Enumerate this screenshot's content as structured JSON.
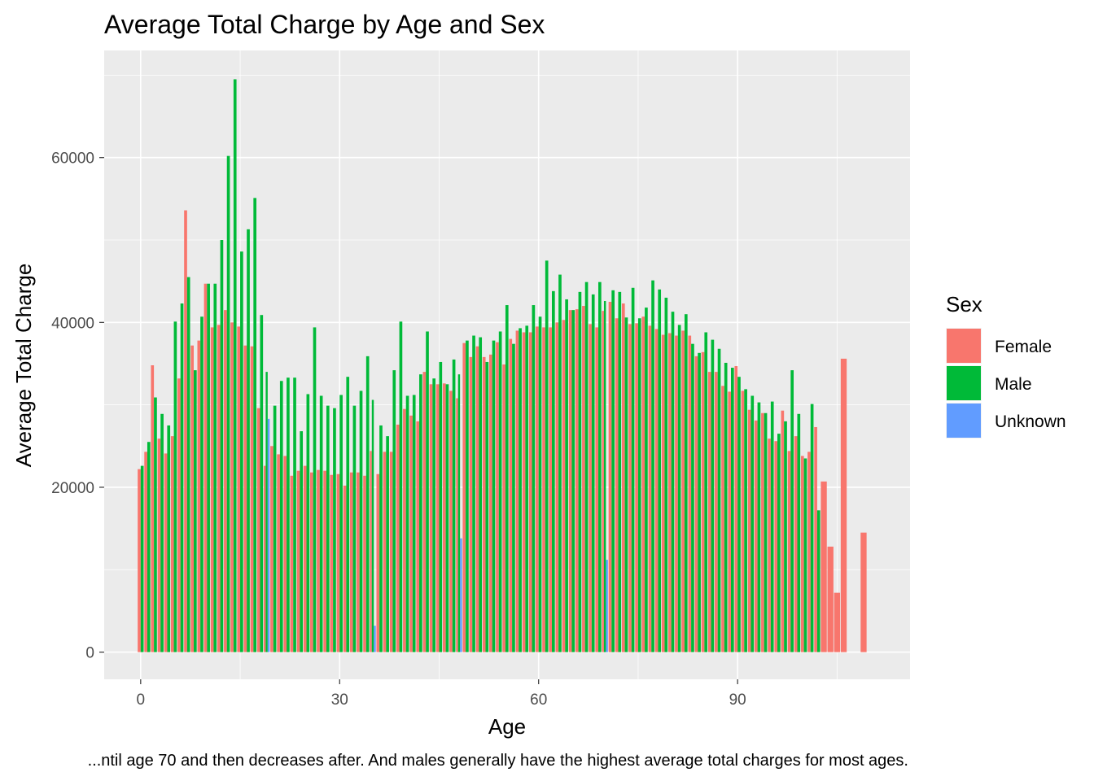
{
  "chart_data": {
    "type": "bar",
    "title": "Average Total Charge by Age and Sex",
    "xlabel": "Age",
    "ylabel": "Average Total Charge",
    "caption": "...ntil age 70 and then decreases after. And males generally have the highest average total charges for most ages.",
    "xlim": [
      -5.5,
      116
    ],
    "ylim": [
      -3300,
      73000
    ],
    "x_ticks": [
      0,
      30,
      60,
      90
    ],
    "x_tick_labels": [
      "0",
      "30",
      "60",
      "90"
    ],
    "y_ticks": [
      0,
      20000,
      40000,
      60000
    ],
    "y_tick_labels": [
      "0",
      "20000",
      "40000",
      "60000"
    ],
    "grid": true,
    "legend": {
      "title": "Sex",
      "position": "right"
    },
    "series": [
      {
        "name": "Female",
        "color": "#F8766D",
        "points": [
          [
            0,
            22200
          ],
          [
            1,
            24300
          ],
          [
            2,
            34800
          ],
          [
            3,
            25900
          ],
          [
            4,
            24100
          ],
          [
            5,
            26200
          ],
          [
            6,
            33200
          ],
          [
            7,
            53600
          ],
          [
            8,
            37200
          ],
          [
            9,
            37800
          ],
          [
            10,
            44700
          ],
          [
            11,
            39400
          ],
          [
            12,
            39700
          ],
          [
            13,
            41500
          ],
          [
            14,
            40000
          ],
          [
            15,
            39500
          ],
          [
            16,
            37200
          ],
          [
            17,
            37100
          ],
          [
            18,
            29600
          ],
          [
            19,
            22600
          ],
          [
            20,
            25000
          ],
          [
            21,
            24000
          ],
          [
            22,
            23800
          ],
          [
            23,
            21400
          ],
          [
            24,
            22000
          ],
          [
            25,
            22600
          ],
          [
            26,
            21800
          ],
          [
            27,
            22100
          ],
          [
            28,
            22000
          ],
          [
            29,
            21500
          ],
          [
            30,
            21600
          ],
          [
            31,
            20200
          ],
          [
            32,
            21800
          ],
          [
            33,
            21800
          ],
          [
            34,
            21400
          ],
          [
            35,
            24400
          ],
          [
            36,
            21600
          ],
          [
            37,
            24300
          ],
          [
            38,
            24300
          ],
          [
            39,
            27600
          ],
          [
            40,
            29500
          ],
          [
            41,
            28700
          ],
          [
            42,
            28000
          ],
          [
            43,
            34000
          ],
          [
            44,
            32500
          ],
          [
            45,
            32500
          ],
          [
            46,
            32600
          ],
          [
            47,
            31700
          ],
          [
            48,
            30800
          ],
          [
            49,
            37500
          ],
          [
            50,
            35800
          ],
          [
            51,
            37100
          ],
          [
            52,
            35800
          ],
          [
            53,
            36100
          ],
          [
            54,
            37600
          ],
          [
            55,
            34900
          ],
          [
            56,
            38000
          ],
          [
            57,
            39000
          ],
          [
            58,
            38800
          ],
          [
            59,
            38800
          ],
          [
            60,
            39500
          ],
          [
            61,
            39400
          ],
          [
            62,
            39400
          ],
          [
            63,
            40000
          ],
          [
            64,
            40300
          ],
          [
            65,
            41500
          ],
          [
            66,
            41600
          ],
          [
            67,
            42000
          ],
          [
            68,
            39800
          ],
          [
            69,
            39400
          ],
          [
            70,
            41400
          ],
          [
            71,
            42500
          ],
          [
            72,
            40500
          ],
          [
            73,
            42300
          ],
          [
            74,
            39800
          ],
          [
            75,
            39900
          ],
          [
            76,
            40700
          ],
          [
            77,
            39600
          ],
          [
            78,
            39200
          ],
          [
            79,
            38500
          ],
          [
            80,
            38700
          ],
          [
            81,
            38400
          ],
          [
            82,
            39000
          ],
          [
            83,
            38400
          ],
          [
            84,
            35900
          ],
          [
            85,
            36400
          ],
          [
            86,
            34000
          ],
          [
            87,
            34000
          ],
          [
            88,
            32300
          ],
          [
            89,
            31600
          ],
          [
            90,
            34700
          ],
          [
            91,
            31700
          ],
          [
            92,
            29400
          ],
          [
            93,
            28100
          ],
          [
            94,
            29000
          ],
          [
            95,
            25900
          ],
          [
            96,
            25600
          ],
          [
            97,
            29300
          ],
          [
            98,
            24400
          ],
          [
            99,
            26200
          ],
          [
            100,
            23800
          ],
          [
            101,
            24300
          ],
          [
            102,
            27300
          ],
          [
            103,
            20700
          ],
          [
            104,
            12800
          ],
          [
            105,
            7200
          ],
          [
            106,
            35600
          ],
          [
            109,
            14500
          ]
        ]
      },
      {
        "name": "Male",
        "color": "#00BA38",
        "points": [
          [
            0,
            22600
          ],
          [
            1,
            25500
          ],
          [
            2,
            30900
          ],
          [
            3,
            28900
          ],
          [
            4,
            27500
          ],
          [
            5,
            40100
          ],
          [
            6,
            42300
          ],
          [
            7,
            45500
          ],
          [
            8,
            34200
          ],
          [
            9,
            40700
          ],
          [
            10,
            44700
          ],
          [
            11,
            44700
          ],
          [
            12,
            50000
          ],
          [
            13,
            60200
          ],
          [
            14,
            69500
          ],
          [
            15,
            48600
          ],
          [
            16,
            51300
          ],
          [
            17,
            55100
          ],
          [
            18,
            40900
          ],
          [
            19,
            34000
          ],
          [
            20,
            29900
          ],
          [
            21,
            32900
          ],
          [
            22,
            33300
          ],
          [
            23,
            33300
          ],
          [
            24,
            26800
          ],
          [
            25,
            31300
          ],
          [
            26,
            39400
          ],
          [
            27,
            31100
          ],
          [
            28,
            29900
          ],
          [
            29,
            29600
          ],
          [
            30,
            31200
          ],
          [
            31,
            33400
          ],
          [
            32,
            29900
          ],
          [
            33,
            31700
          ],
          [
            34,
            35900
          ],
          [
            35,
            30600
          ],
          [
            36,
            27500
          ],
          [
            37,
            26200
          ],
          [
            38,
            34200
          ],
          [
            39,
            40100
          ],
          [
            40,
            31100
          ],
          [
            41,
            31200
          ],
          [
            42,
            33700
          ],
          [
            43,
            38900
          ],
          [
            44,
            33200
          ],
          [
            45,
            35200
          ],
          [
            46,
            32500
          ],
          [
            47,
            35500
          ],
          [
            48,
            33700
          ],
          [
            49,
            37800
          ],
          [
            50,
            38400
          ],
          [
            51,
            38200
          ],
          [
            52,
            35200
          ],
          [
            53,
            37800
          ],
          [
            54,
            38900
          ],
          [
            55,
            42100
          ],
          [
            56,
            37400
          ],
          [
            57,
            39300
          ],
          [
            58,
            39600
          ],
          [
            59,
            42100
          ],
          [
            60,
            40700
          ],
          [
            61,
            47500
          ],
          [
            62,
            43800
          ],
          [
            63,
            45800
          ],
          [
            64,
            42800
          ],
          [
            65,
            41500
          ],
          [
            66,
            43700
          ],
          [
            67,
            44900
          ],
          [
            68,
            43400
          ],
          [
            69,
            44900
          ],
          [
            70,
            42600
          ],
          [
            71,
            43900
          ],
          [
            72,
            43700
          ],
          [
            73,
            40600
          ],
          [
            74,
            44200
          ],
          [
            75,
            40500
          ],
          [
            76,
            41800
          ],
          [
            77,
            45100
          ],
          [
            78,
            44000
          ],
          [
            79,
            43000
          ],
          [
            80,
            41300
          ],
          [
            81,
            39700
          ],
          [
            82,
            41000
          ],
          [
            83,
            37400
          ],
          [
            84,
            36300
          ],
          [
            85,
            38800
          ],
          [
            86,
            37900
          ],
          [
            87,
            36800
          ],
          [
            88,
            35100
          ],
          [
            89,
            34500
          ],
          [
            90,
            33400
          ],
          [
            91,
            31900
          ],
          [
            92,
            31100
          ],
          [
            93,
            30300
          ],
          [
            94,
            29000
          ],
          [
            95,
            30400
          ],
          [
            96,
            26500
          ],
          [
            97,
            28000
          ],
          [
            98,
            34200
          ],
          [
            99,
            28900
          ],
          [
            100,
            23500
          ],
          [
            101,
            30100
          ],
          [
            102,
            17200
          ]
        ]
      },
      {
        "name": "Unknown",
        "color": "#619CFF",
        "points": [
          [
            19,
            28300
          ],
          [
            35,
            3200
          ],
          [
            48,
            13800
          ],
          [
            70,
            11200
          ]
        ]
      }
    ]
  }
}
